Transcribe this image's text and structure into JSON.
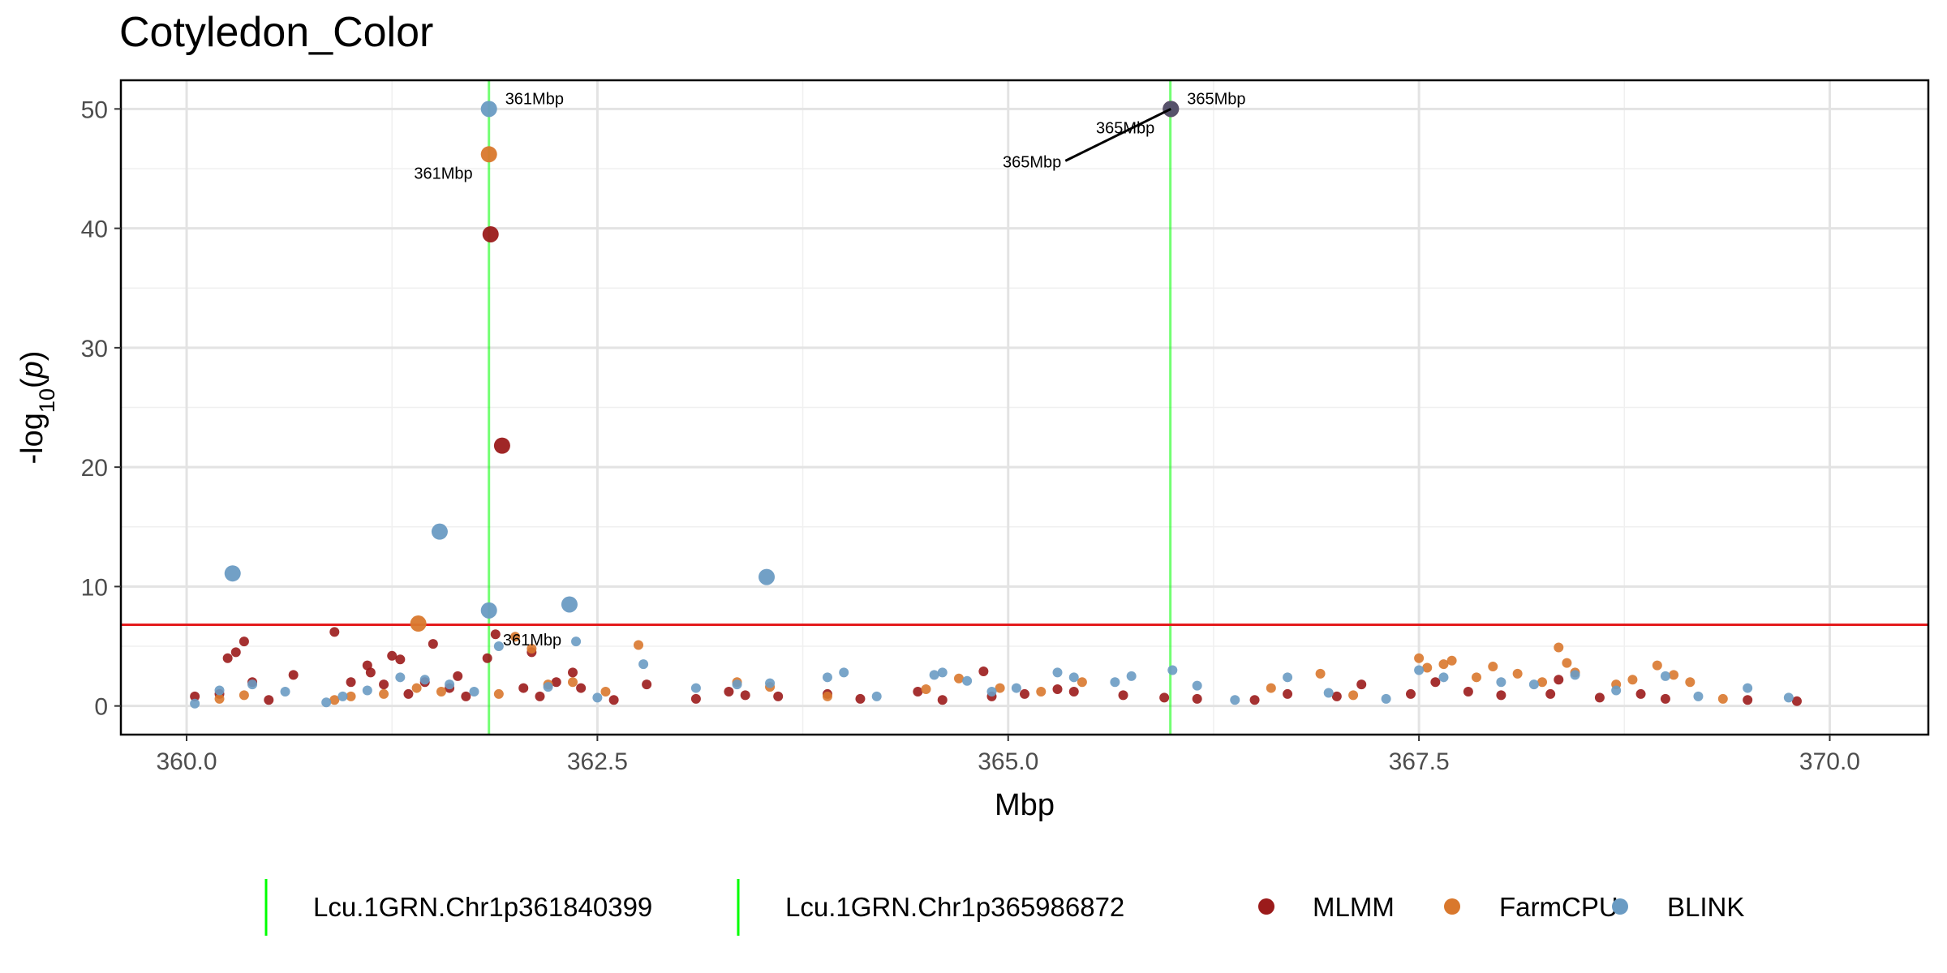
{
  "title": "Cotyledon_Color",
  "chart_data": {
    "type": "scatter",
    "title": "Cotyledon_Color",
    "xlabel": "Mbp",
    "ylabel": "-log10(p)",
    "xlim": [
      359.6,
      370.6
    ],
    "ylim": [
      -2.4,
      52.4
    ],
    "x_ticks": [
      360.0,
      362.5,
      365.0,
      367.5,
      370.0
    ],
    "x_tick_labels": [
      "360.0",
      "362.5",
      "365.0",
      "367.5",
      "370.0"
    ],
    "y_ticks": [
      0,
      10,
      20,
      30,
      40,
      50
    ],
    "y_tick_labels": [
      "0",
      "10",
      "20",
      "30",
      "40",
      "50"
    ],
    "grid": true,
    "legend_position": "bottom",
    "threshold": {
      "y": 6.8,
      "color": "#e41a1c"
    },
    "vlines": [
      {
        "name": "Lcu.1GRN.Chr1p361840399",
        "x": 361.84,
        "color": "#00ff00"
      },
      {
        "name": "Lcu.1GRN.Chr1p365986872",
        "x": 365.987,
        "color": "#00ff00"
      }
    ],
    "series": [
      {
        "name": "MLMM",
        "color": "#9b1b1b",
        "highlight": [
          [
            361.85,
            39.5
          ],
          [
            361.92,
            21.8
          ],
          [
            365.99,
            50.0
          ]
        ],
        "points": [
          [
            360.05,
            0.8
          ],
          [
            360.2,
            1.0
          ],
          [
            360.25,
            4.0
          ],
          [
            360.3,
            4.5
          ],
          [
            360.35,
            5.4
          ],
          [
            360.4,
            2.0
          ],
          [
            360.5,
            0.5
          ],
          [
            360.65,
            2.6
          ],
          [
            360.9,
            6.2
          ],
          [
            361.0,
            2.0
          ],
          [
            361.1,
            3.4
          ],
          [
            361.12,
            2.8
          ],
          [
            361.2,
            1.8
          ],
          [
            361.25,
            4.2
          ],
          [
            361.3,
            3.9
          ],
          [
            361.35,
            1.0
          ],
          [
            361.45,
            2.0
          ],
          [
            361.5,
            5.2
          ],
          [
            361.6,
            1.5
          ],
          [
            361.65,
            2.5
          ],
          [
            361.7,
            0.8
          ],
          [
            361.83,
            4.0
          ],
          [
            361.88,
            6.0
          ],
          [
            362.05,
            1.5
          ],
          [
            362.1,
            4.5
          ],
          [
            362.15,
            0.8
          ],
          [
            362.25,
            2.0
          ],
          [
            362.35,
            2.8
          ],
          [
            362.4,
            1.5
          ],
          [
            362.6,
            0.5
          ],
          [
            362.8,
            1.8
          ],
          [
            363.1,
            0.6
          ],
          [
            363.3,
            1.2
          ],
          [
            363.4,
            0.9
          ],
          [
            363.6,
            0.8
          ],
          [
            363.9,
            1.0
          ],
          [
            364.1,
            0.6
          ],
          [
            364.45,
            1.2
          ],
          [
            364.6,
            0.5
          ],
          [
            364.85,
            2.9
          ],
          [
            364.9,
            0.8
          ],
          [
            365.1,
            1.0
          ],
          [
            365.3,
            1.4
          ],
          [
            365.4,
            1.2
          ],
          [
            365.7,
            0.9
          ],
          [
            365.95,
            0.7
          ],
          [
            366.15,
            0.6
          ],
          [
            366.5,
            0.5
          ],
          [
            366.7,
            1.0
          ],
          [
            367.0,
            0.8
          ],
          [
            367.15,
            1.8
          ],
          [
            367.45,
            1.0
          ],
          [
            367.6,
            2.0
          ],
          [
            367.8,
            1.2
          ],
          [
            368.0,
            0.9
          ],
          [
            368.3,
            1.0
          ],
          [
            368.35,
            2.2
          ],
          [
            368.6,
            0.7
          ],
          [
            368.85,
            1.0
          ],
          [
            369.0,
            0.6
          ],
          [
            369.5,
            0.5
          ],
          [
            369.8,
            0.4
          ]
        ]
      },
      {
        "name": "FarmCPU",
        "color": "#d9782d",
        "highlight": [
          [
            361.84,
            46.2
          ],
          [
            361.41,
            6.9
          ]
        ],
        "points": [
          [
            360.2,
            0.6
          ],
          [
            360.35,
            0.9
          ],
          [
            360.9,
            0.5
          ],
          [
            361.0,
            0.8
          ],
          [
            361.2,
            1.0
          ],
          [
            361.4,
            1.5
          ],
          [
            361.55,
            1.2
          ],
          [
            361.9,
            1.0
          ],
          [
            362.0,
            5.8
          ],
          [
            362.1,
            4.8
          ],
          [
            362.2,
            1.8
          ],
          [
            362.35,
            2.0
          ],
          [
            362.55,
            1.2
          ],
          [
            362.75,
            5.1
          ],
          [
            363.35,
            2.0
          ],
          [
            363.55,
            1.6
          ],
          [
            363.9,
            0.8
          ],
          [
            364.5,
            1.4
          ],
          [
            364.7,
            2.3
          ],
          [
            364.95,
            1.5
          ],
          [
            365.2,
            1.2
          ],
          [
            365.45,
            2.0
          ],
          [
            366.6,
            1.5
          ],
          [
            366.9,
            2.7
          ],
          [
            367.1,
            0.9
          ],
          [
            367.5,
            4.0
          ],
          [
            367.55,
            3.2
          ],
          [
            367.65,
            3.5
          ],
          [
            367.7,
            3.8
          ],
          [
            367.85,
            2.4
          ],
          [
            367.95,
            3.3
          ],
          [
            368.1,
            2.7
          ],
          [
            368.25,
            2.0
          ],
          [
            368.35,
            4.9
          ],
          [
            368.4,
            3.6
          ],
          [
            368.45,
            2.8
          ],
          [
            368.7,
            1.8
          ],
          [
            368.8,
            2.2
          ],
          [
            368.95,
            3.4
          ],
          [
            369.05,
            2.6
          ],
          [
            369.15,
            2.0
          ],
          [
            369.35,
            0.6
          ]
        ]
      },
      {
        "name": "BLINK",
        "color": "#6a9bc3",
        "highlight": [
          [
            361.84,
            50.0
          ],
          [
            360.28,
            11.1
          ],
          [
            361.54,
            14.6
          ],
          [
            361.84,
            8.0
          ],
          [
            362.33,
            8.5
          ],
          [
            363.53,
            10.8
          ]
        ],
        "points": [
          [
            360.05,
            0.2
          ],
          [
            360.2,
            1.3
          ],
          [
            360.4,
            1.8
          ],
          [
            360.6,
            1.2
          ],
          [
            360.85,
            0.3
          ],
          [
            360.95,
            0.8
          ],
          [
            361.1,
            1.3
          ],
          [
            361.3,
            2.4
          ],
          [
            361.45,
            2.2
          ],
          [
            361.6,
            1.8
          ],
          [
            361.75,
            1.2
          ],
          [
            361.9,
            5.0
          ],
          [
            362.2,
            1.6
          ],
          [
            362.37,
            5.4
          ],
          [
            362.5,
            0.7
          ],
          [
            362.78,
            3.5
          ],
          [
            363.1,
            1.5
          ],
          [
            363.35,
            1.8
          ],
          [
            363.55,
            1.9
          ],
          [
            363.9,
            2.4
          ],
          [
            364.0,
            2.8
          ],
          [
            364.2,
            0.8
          ],
          [
            364.55,
            2.6
          ],
          [
            364.6,
            2.8
          ],
          [
            364.75,
            2.1
          ],
          [
            364.9,
            1.2
          ],
          [
            365.05,
            1.5
          ],
          [
            365.3,
            2.8
          ],
          [
            365.4,
            2.4
          ],
          [
            365.65,
            2.0
          ],
          [
            365.75,
            2.5
          ],
          [
            366.0,
            3.0
          ],
          [
            366.15,
            1.7
          ],
          [
            366.38,
            0.5
          ],
          [
            366.7,
            2.4
          ],
          [
            366.95,
            1.1
          ],
          [
            367.3,
            0.6
          ],
          [
            367.5,
            3.0
          ],
          [
            367.65,
            2.4
          ],
          [
            368.0,
            2.0
          ],
          [
            368.2,
            1.8
          ],
          [
            368.45,
            2.6
          ],
          [
            368.7,
            1.3
          ],
          [
            369.0,
            2.5
          ],
          [
            369.2,
            0.8
          ],
          [
            369.5,
            1.5
          ],
          [
            369.75,
            0.7
          ]
        ]
      }
    ],
    "annotations": [
      {
        "text": "361Mbp",
        "x": 361.84,
        "y": 50.0
      },
      {
        "text": "361Mbp",
        "x": 361.84,
        "y": 46.2
      },
      {
        "text": "361Mbp",
        "x": 361.9,
        "y": 5.0
      },
      {
        "text": "365Mbp",
        "x": 365.99,
        "y": 50.0
      },
      {
        "text": "365Mbp",
        "x": 365.99,
        "y": 50.0
      },
      {
        "text": "365Mbp",
        "x": 365.99,
        "y": 50.0
      }
    ]
  }
}
